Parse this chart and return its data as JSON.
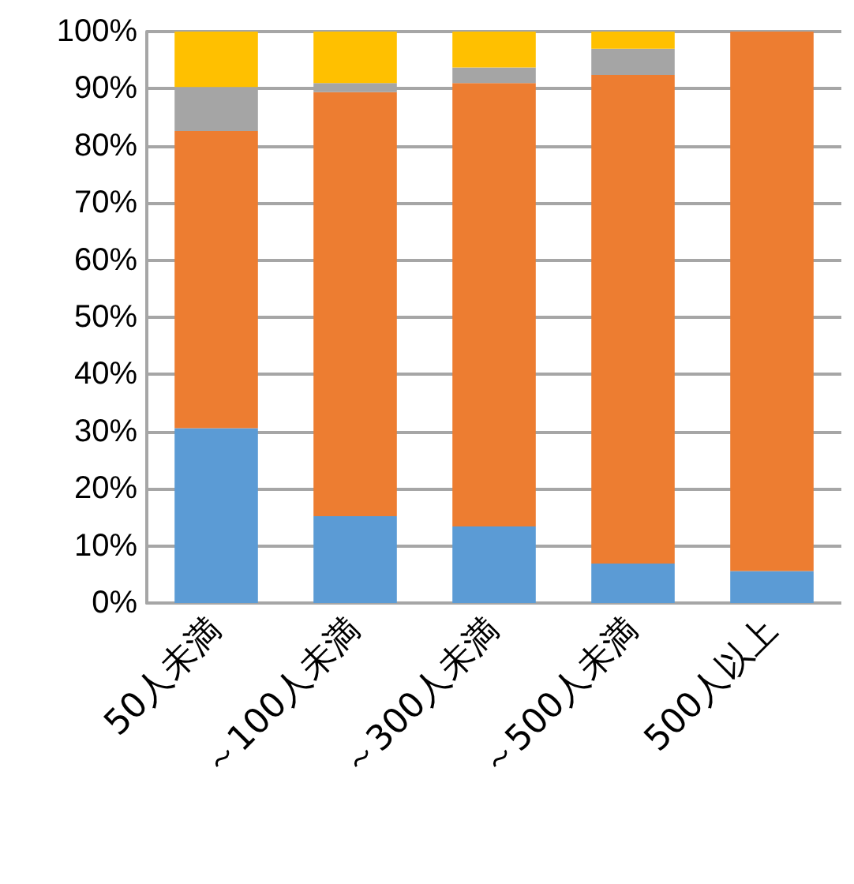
{
  "chart_data": {
    "type": "bar",
    "stacked": true,
    "categories": [
      "50人未満",
      "～100人未満",
      "～300人未満",
      "～500人未満",
      "500人以上"
    ],
    "series": [
      {
        "color": "#5b9bd5",
        "values": [
          30.6,
          15.2,
          13.4,
          6.9,
          5.6
        ]
      },
      {
        "color": "#ed7d31",
        "values": [
          52,
          74.2,
          77.6,
          85.5,
          94.4
        ]
      },
      {
        "color": "#a5a5a5",
        "values": [
          7.7,
          1.6,
          2.7,
          4.6,
          null
        ]
      },
      {
        "color": "#ffc000",
        "values": [
          9.7,
          9.0,
          6.3,
          3.0,
          null
        ]
      }
    ],
    "ylim": [
      0,
      100
    ],
    "yticks": [
      {
        "value": 0,
        "label": "0%"
      },
      {
        "value": 10,
        "label": "10%"
      },
      {
        "value": 20,
        "label": "20%"
      },
      {
        "value": 30,
        "label": "30%"
      },
      {
        "value": 40,
        "label": "40%"
      },
      {
        "value": 50,
        "label": "50%"
      },
      {
        "value": 60,
        "label": "60%"
      },
      {
        "value": 70,
        "label": "70%"
      },
      {
        "value": 80,
        "label": "80%"
      },
      {
        "value": 90,
        "label": "90%"
      },
      {
        "value": 100,
        "label": "100%"
      }
    ],
    "grid": "y"
  }
}
